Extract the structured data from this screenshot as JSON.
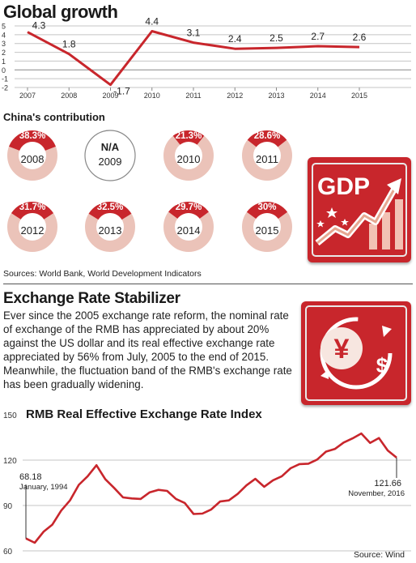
{
  "global_growth": {
    "title": "Global growth"
  },
  "contribution": {
    "title": "China's contribution",
    "items": [
      {
        "year": "2008",
        "pct_label": "38.3%",
        "value": 38.3
      },
      {
        "year": "2009",
        "pct_label": "N/A",
        "value": null
      },
      {
        "year": "2010",
        "pct_label": "21.3%",
        "value": 21.3
      },
      {
        "year": "2011",
        "pct_label": "28.6%",
        "value": 28.6
      },
      {
        "year": "2012",
        "pct_label": "31.7%",
        "value": 31.7
      },
      {
        "year": "2013",
        "pct_label": "32.5%",
        "value": 32.5
      },
      {
        "year": "2014",
        "pct_label": "29.7%",
        "value": 29.7
      },
      {
        "year": "2015",
        "pct_label": "30%",
        "value": 30
      }
    ],
    "source": "Sources: World Bank, World Development Indicators"
  },
  "gdp_icon": {
    "text": "GDP"
  },
  "exchange": {
    "title": "Exchange Rate Stabilizer",
    "body": "Ever since the 2005 exchange rate reform, the nominal rate of exchange of the RMB has appreciated by about 20% against the US dollar and its real effective exchange rate appreciated by 56% from July, 2005 to the end of 2015. Meanwhile, the fluctuation band of the RMB's exchange rate has been gradually widening.",
    "icon_symbols": {
      "yuan": "¥",
      "dollar": "$"
    }
  },
  "colors": {
    "accent": "#c8262c",
    "donut_light": "#ebc3b9",
    "grid": "#bbbbbb"
  },
  "chart_data": [
    {
      "type": "line",
      "x": [
        "2007",
        "2008",
        "2009",
        "2010",
        "2011",
        "2012",
        "2013",
        "2014",
        "2015"
      ],
      "values": [
        4.3,
        1.8,
        -1.7,
        4.4,
        3.1,
        2.4,
        2.5,
        2.7,
        2.6
      ],
      "data_labels": [
        "4.3",
        "1.8",
        "-1.7",
        "4.4",
        "3.1",
        "2.4",
        "2.5",
        "2.7",
        "2.6"
      ],
      "yticks": [
        "5",
        "4",
        "3",
        "2",
        "1",
        "0",
        "-1",
        "-2"
      ],
      "ylim": [
        -2,
        5
      ],
      "grid": true
    },
    {
      "type": "line",
      "title": "RMB Real Effective Exchange Rate Index",
      "yticks": [
        "150",
        "120",
        "90",
        "60"
      ],
      "ylim": [
        60,
        150
      ],
      "x_start": "1994-01",
      "x_end": "2016-11",
      "values": [
        68.18,
        66,
        72,
        78,
        86,
        94,
        103,
        110,
        116,
        108,
        101,
        96,
        94,
        95,
        98,
        101,
        99,
        95,
        91,
        85,
        84,
        88,
        92,
        94,
        97,
        104,
        107,
        103,
        106,
        110,
        114,
        118,
        117,
        121,
        125,
        128,
        131,
        135,
        137,
        132,
        134,
        127,
        121.66
      ],
      "annotations": [
        {
          "value": "68.18",
          "label": "January, 1994"
        },
        {
          "value": "121.66",
          "label": "November, 2016"
        }
      ],
      "source": "Source: Wind",
      "grid": true
    }
  ]
}
